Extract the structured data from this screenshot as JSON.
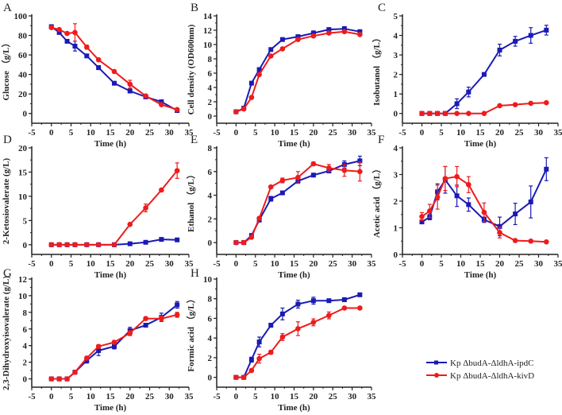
{
  "chart_data": {
    "type": "line",
    "x": [
      0,
      2,
      4,
      6,
      9,
      12,
      16,
      20,
      24,
      28,
      32
    ],
    "xlabel": "Time (h)",
    "xlim": [
      -5,
      35
    ],
    "xticks": [
      -5,
      0,
      5,
      10,
      15,
      20,
      25,
      30,
      35
    ],
    "legend": {
      "placement": "bottom-right",
      "entries": [
        {
          "name": "Kp ΔbudA-ΔldhA-ipdC",
          "color": "#1a1ab4",
          "marker": "square"
        },
        {
          "name": "Kp ΔbudA-ΔldhA-kivD",
          "color": "#ee1c1c",
          "marker": "circle"
        }
      ]
    },
    "panels": [
      {
        "letter": "A",
        "ylabel": "Glucose （g/L）",
        "ylim": [
          -10,
          100
        ],
        "yticks": [
          0,
          20,
          40,
          60,
          80,
          100
        ],
        "series": [
          {
            "name": "Kp ΔbudA-ΔldhA-ipdC",
            "values": [
              89,
              83,
              74,
              69,
              59,
              47,
              31,
              23,
              17,
              12,
              3
            ],
            "err": [
              1,
              1,
              1,
              5,
              1,
              2,
              1,
              1,
              1,
              1,
              1
            ]
          },
          {
            "name": "Kp ΔbudA-ΔldhA-kivD",
            "values": [
              88,
              86,
              82,
              83,
              68,
              55,
              43,
              30,
              18,
              9,
              4
            ],
            "err": [
              1,
              1,
              1,
              9,
              2,
              1,
              1,
              4,
              1,
              1,
              1
            ]
          }
        ]
      },
      {
        "letter": "B",
        "ylabel": "Cell density (OD600nm)",
        "ylim": [
          -1,
          14
        ],
        "yticks": [
          0,
          2,
          4,
          6,
          8,
          10,
          12,
          14
        ],
        "series": [
          {
            "name": "Kp ΔbudA-ΔldhA-ipdC",
            "values": [
              0.6,
              1.1,
              4.6,
              6.5,
              9.3,
              10.7,
              11.1,
              11.6,
              12.1,
              12.2,
              11.8
            ],
            "err": [
              0.1,
              0.1,
              0.2,
              0.2,
              0.2,
              0.2,
              0.2,
              0.3,
              0.2,
              0.3,
              0.2
            ]
          },
          {
            "name": "Kp ΔbudA-ΔldhA-kivD",
            "values": [
              0.6,
              1.0,
              2.6,
              5.8,
              8.4,
              9.4,
              10.7,
              11.2,
              11.6,
              11.8,
              11.4
            ],
            "err": [
              0.1,
              0.1,
              0.2,
              0.2,
              0.2,
              0.2,
              0.2,
              0.2,
              0.2,
              0.2,
              0.2
            ]
          }
        ]
      },
      {
        "letter": "C",
        "ylabel": "Isobutanol （g/L）",
        "ylim": [
          -0.5,
          5
        ],
        "yticks": [
          0,
          1,
          2,
          3,
          4,
          5
        ],
        "series": [
          {
            "name": "Kp ΔbudA-ΔldhA-ipdC",
            "values": [
              0,
              0,
              0,
              0,
              0.5,
              1.1,
              2.0,
              3.25,
              3.7,
              4.0,
              4.27
            ],
            "err": [
              0,
              0,
              0,
              0,
              0.25,
              0.25,
              0.05,
              0.3,
              0.25,
              0.4,
              0.25
            ]
          },
          {
            "name": "Kp ΔbudA-ΔldhA-kivD",
            "values": [
              0,
              0,
              0,
              0,
              0,
              0,
              0,
              0.4,
              0.45,
              0.52,
              0.55
            ],
            "err": [
              0,
              0,
              0,
              0,
              0,
              0,
              0,
              0.03,
              0.03,
              0.03,
              0.03
            ]
          }
        ]
      },
      {
        "letter": "D",
        "ylabel": "2-Ketosiovalerate (g/L)",
        "ylim": [
          -2,
          20
        ],
        "yticks": [
          0,
          5,
          10,
          15,
          20
        ],
        "series": [
          {
            "name": "Kp ΔbudA-ΔldhA-ipdC",
            "values": [
              0,
              0,
              0,
              0,
              0,
              0,
              0,
              0.2,
              0.5,
              1.1,
              1.0
            ],
            "err": [
              0,
              0,
              0,
              0,
              0,
              0,
              0,
              0.1,
              0.1,
              0.1,
              0.1
            ]
          },
          {
            "name": "Kp ΔbudA-ΔldhA-kivD",
            "values": [
              0,
              0,
              0,
              0,
              0,
              0,
              0,
              4.2,
              7.6,
              11.3,
              15.3
            ],
            "err": [
              0,
              0,
              0,
              0,
              0,
              0,
              0,
              0.2,
              0.8,
              0.3,
              1.6
            ]
          }
        ]
      },
      {
        "letter": "E",
        "ylabel": "Ethanol （g/L）",
        "ylim": [
          -1,
          8
        ],
        "yticks": [
          0,
          2,
          4,
          6,
          8
        ],
        "series": [
          {
            "name": "Kp ΔbudA-ΔldhA-ipdC",
            "values": [
              0,
              0,
              0.6,
              1.9,
              3.7,
              4.2,
              5.2,
              5.7,
              6.05,
              6.6,
              6.9
            ],
            "err": [
              0,
              0,
              0.05,
              0.1,
              0.2,
              0.1,
              0.15,
              0.15,
              0.15,
              0.3,
              0.4
            ]
          },
          {
            "name": "Kp ΔbudA-ΔldhA-kivD",
            "values": [
              0,
              0,
              0.45,
              2.05,
              4.7,
              5.25,
              5.5,
              6.65,
              6.3,
              6.1,
              6.0
            ],
            "err": [
              0,
              0,
              0.05,
              0.1,
              0.1,
              0.2,
              0.5,
              0.15,
              0.3,
              0.5,
              0.8
            ]
          }
        ]
      },
      {
        "letter": "F",
        "ylabel": "Acetic acid （g/L）",
        "ylim": [
          0,
          4
        ],
        "yticks": [
          0,
          1,
          2,
          3,
          4
        ],
        "series": [
          {
            "name": "Kp ΔbudA-ΔldhA-ipdC",
            "values": [
              1.22,
              1.4,
              2.35,
              2.8,
              2.2,
              1.87,
              1.3,
              1.05,
              1.52,
              1.97,
              3.2
            ],
            "err": [
              0.05,
              0.1,
              0.3,
              0.5,
              0.4,
              0.25,
              0.1,
              0.35,
              0.4,
              0.6,
              0.43
            ]
          },
          {
            "name": "Kp ΔbudA-ΔldhA-kivD",
            "values": [
              1.42,
              1.63,
              2.15,
              2.85,
              2.92,
              2.62,
              1.58,
              0.82,
              0.52,
              0.5,
              0.47
            ],
            "err": [
              0.15,
              0.25,
              0.45,
              0.45,
              0.38,
              0.3,
              0.35,
              0.2,
              0.04,
              0.03,
              0.03
            ]
          }
        ]
      },
      {
        "letter": "G",
        "ylabel": "2,3-Dihydroxyisovalerate (g/L)",
        "ylim": [
          -1,
          12
        ],
        "yticks": [
          0,
          2,
          4,
          6,
          8,
          10,
          12
        ],
        "series": [
          {
            "name": "Kp ΔbudA-ΔldhA-ipdC",
            "values": [
              0,
              0,
              0,
              0.8,
              2.2,
              3.4,
              3.9,
              5.8,
              6.45,
              7.4,
              8.9
            ],
            "err": [
              0,
              0,
              0,
              0.1,
              0.3,
              0.6,
              0.3,
              0.4,
              0.2,
              0.5,
              0.4
            ]
          },
          {
            "name": "Kp ΔbudA-ΔldhA-kivD",
            "values": [
              0,
              0,
              0,
              0.8,
              2.5,
              3.9,
              4.4,
              5.5,
              7.25,
              7.25,
              7.7
            ],
            "err": [
              0,
              0,
              0,
              0.1,
              0.2,
              0.2,
              0.2,
              0.3,
              0.2,
              0.3,
              0.3
            ]
          }
        ]
      },
      {
        "letter": "H",
        "ylabel": "Formic acid （g/L）",
        "ylim": [
          -1,
          10
        ],
        "yticks": [
          0,
          2,
          4,
          6,
          8,
          10
        ],
        "series": [
          {
            "name": "Kp ΔbudA-ΔldhA-ipdC",
            "values": [
              0,
              0,
              1.8,
              3.6,
              5.3,
              6.45,
              7.45,
              7.8,
              7.8,
              7.9,
              8.4
            ],
            "err": [
              0,
              0,
              0.25,
              0.5,
              0.2,
              0.6,
              0.4,
              0.35,
              0.15,
              0.2,
              0.15
            ]
          },
          {
            "name": "Kp ΔbudA-ΔldhA-kivD",
            "values": [
              0,
              0,
              0.7,
              1.9,
              2.55,
              4.1,
              4.95,
              5.6,
              6.3,
              7.05,
              7.05
            ],
            "err": [
              0,
              0,
              0.1,
              0.45,
              0.2,
              0.35,
              0.7,
              0.35,
              0.35,
              0.1,
              0.1
            ]
          }
        ]
      }
    ]
  }
}
